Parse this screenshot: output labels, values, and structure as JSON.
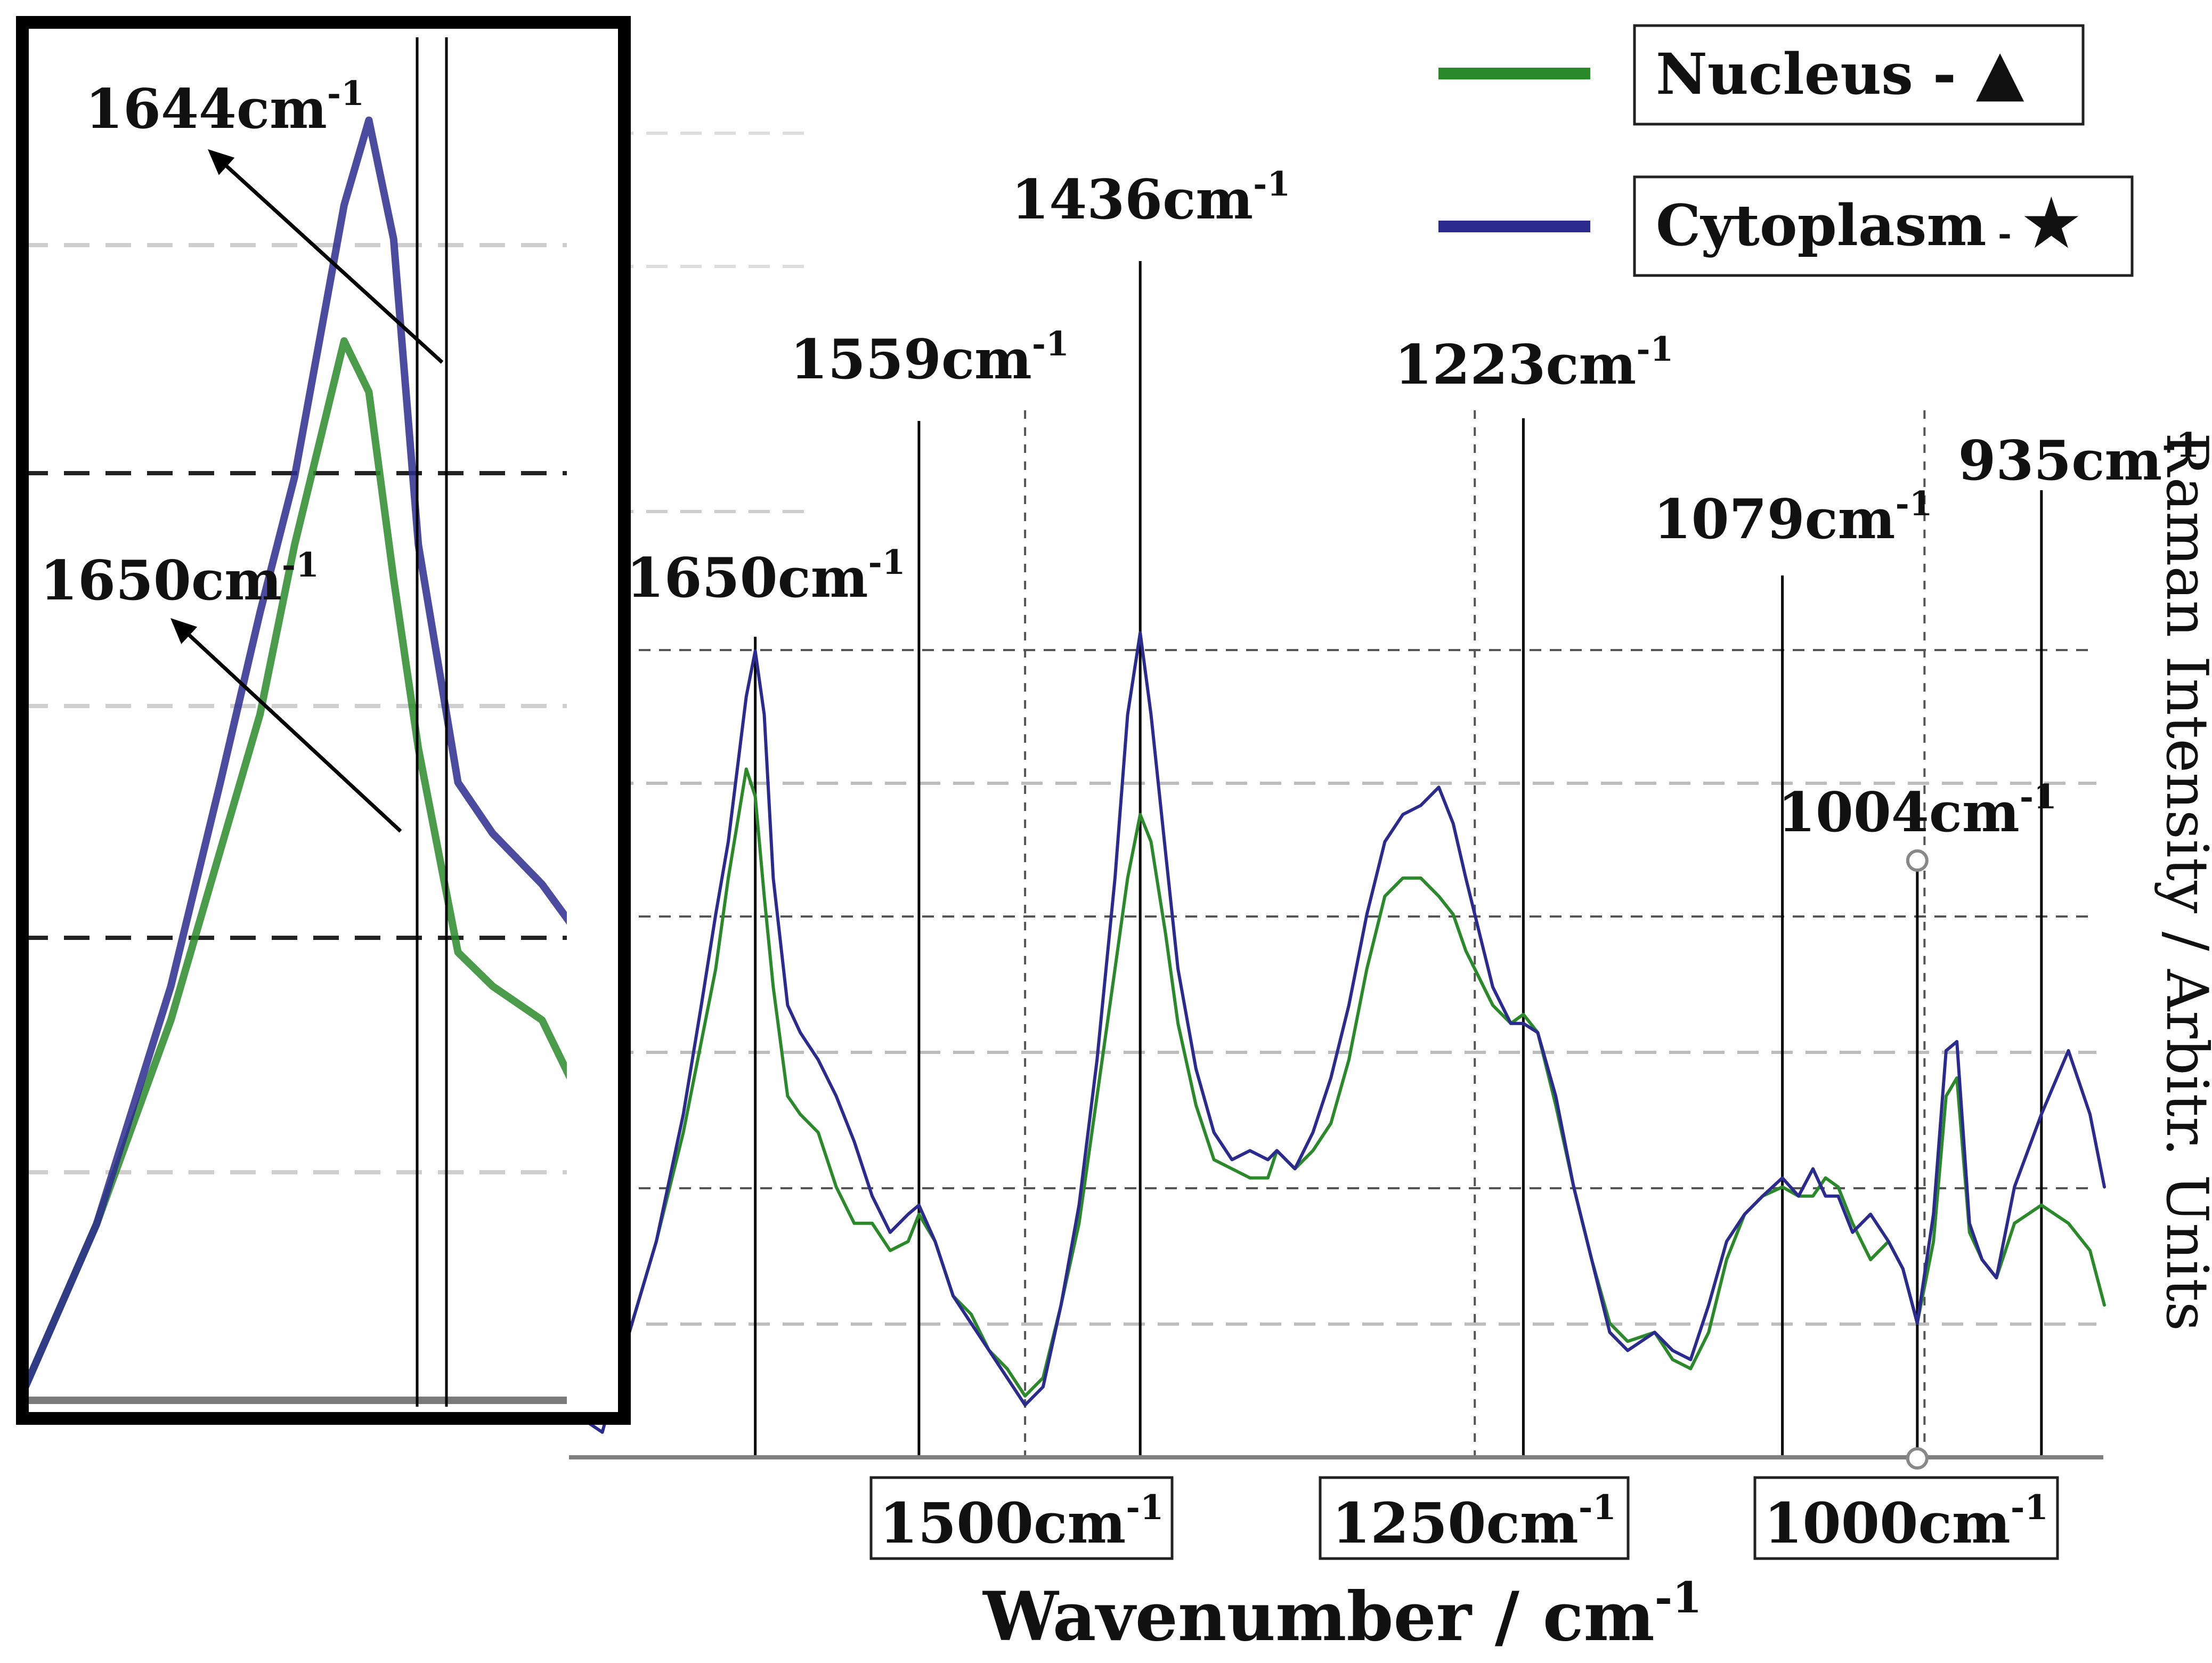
{
  "chart_data": {
    "type": "line",
    "title": "",
    "xlabel": "Wavenumber / cm",
    "xlabel_sup": "-1",
    "ylabel": "Raman Intensity / Arbitr. Units",
    "x_reversed": true,
    "xlim": [
      1750,
      900
    ],
    "ylim": [
      0,
      100
    ],
    "grid": true,
    "legend_position": "top-right",
    "x_ticks": [
      {
        "value": 1500,
        "label": "1500cm",
        "sup": "-1"
      },
      {
        "value": 1250,
        "label": "1250cm",
        "sup": "-1"
      },
      {
        "value": 1000,
        "label": "1000cm",
        "sup": "-1"
      }
    ],
    "legend": [
      {
        "series": "nucleus",
        "label": "Nucleus - ",
        "marker": "▲"
      },
      {
        "series": "cytoplasm",
        "label": "Cytoplasm",
        "separator": " - ",
        "marker": "★"
      }
    ],
    "series": [
      {
        "id": "nucleus",
        "name": "Nucleus",
        "color": "#2a8a2a",
        "x": [
          1750,
          1735,
          1720,
          1705,
          1690,
          1680,
          1672,
          1665,
          1660,
          1655,
          1650,
          1645,
          1640,
          1632,
          1625,
          1615,
          1605,
          1595,
          1585,
          1575,
          1565,
          1559,
          1550,
          1540,
          1530,
          1520,
          1510,
          1500,
          1490,
          1480,
          1470,
          1460,
          1450,
          1443,
          1436,
          1430,
          1422,
          1415,
          1405,
          1395,
          1385,
          1375,
          1365,
          1360,
          1350,
          1340,
          1330,
          1320,
          1310,
          1300,
          1290,
          1280,
          1270,
          1262,
          1255,
          1245,
          1240,
          1230,
          1223,
          1215,
          1205,
          1195,
          1185,
          1175,
          1165,
          1150,
          1140,
          1130,
          1120,
          1110,
          1100,
          1090,
          1079,
          1070,
          1062,
          1055,
          1048,
          1040,
          1030,
          1020,
          1012,
          1004,
          995,
          988,
          982,
          975,
          968,
          960,
          950,
          935,
          920,
          908,
          900
        ],
        "y": [
          4,
          3,
          12,
          22,
          34,
          44,
          52,
          62,
          68,
          74,
          71,
          60,
          50,
          38,
          36,
          34,
          28,
          24,
          24,
          21,
          22,
          25,
          22,
          16,
          14,
          10,
          8,
          5,
          7,
          15,
          24,
          38,
          52,
          62,
          69,
          66,
          56,
          46,
          37,
          31,
          30,
          29,
          29,
          32,
          30,
          32,
          35,
          42,
          52,
          60,
          62,
          62,
          60,
          58,
          54,
          50,
          48,
          46,
          47,
          45,
          37,
          28,
          20,
          13,
          11,
          12,
          9,
          8,
          12,
          20,
          25,
          27,
          28,
          27,
          27,
          29,
          28,
          24,
          20,
          22,
          19,
          13,
          22,
          38,
          40,
          23,
          20,
          18,
          24,
          26,
          24,
          21,
          15
        ]
      },
      {
        "id": "cytoplasm",
        "name": "Cytoplasm",
        "color": "#2b2b8f",
        "x": [
          1750,
          1735,
          1720,
          1705,
          1690,
          1680,
          1672,
          1665,
          1660,
          1655,
          1650,
          1645,
          1640,
          1632,
          1625,
          1615,
          1605,
          1595,
          1585,
          1575,
          1565,
          1559,
          1550,
          1540,
          1530,
          1520,
          1510,
          1500,
          1490,
          1480,
          1470,
          1460,
          1450,
          1443,
          1436,
          1430,
          1422,
          1415,
          1405,
          1395,
          1385,
          1375,
          1365,
          1360,
          1350,
          1340,
          1330,
          1320,
          1310,
          1300,
          1290,
          1280,
          1270,
          1262,
          1255,
          1245,
          1240,
          1230,
          1223,
          1215,
          1205,
          1195,
          1185,
          1175,
          1165,
          1150,
          1140,
          1130,
          1120,
          1110,
          1100,
          1090,
          1079,
          1070,
          1062,
          1055,
          1048,
          1040,
          1030,
          1020,
          1012,
          1004,
          995,
          988,
          982,
          975,
          968,
          960,
          950,
          935,
          920,
          908,
          900
        ],
        "y": [
          3,
          1,
          12,
          22,
          36,
          48,
          58,
          66,
          74,
          82,
          87,
          80,
          62,
          48,
          45,
          42,
          38,
          33,
          27,
          23,
          25,
          26,
          22,
          16,
          13,
          10,
          7,
          4,
          6,
          15,
          26,
          42,
          62,
          80,
          89,
          80,
          65,
          52,
          41,
          34,
          31,
          32,
          31,
          32,
          30,
          34,
          40,
          48,
          58,
          66,
          69,
          70,
          72,
          68,
          62,
          54,
          50,
          46,
          46,
          45,
          38,
          28,
          20,
          12,
          10,
          12,
          10,
          9,
          15,
          22,
          25,
          27,
          29,
          27,
          30,
          27,
          27,
          23,
          25,
          22,
          19,
          13,
          25,
          43,
          44,
          24,
          20,
          18,
          28,
          36,
          43,
          36,
          28
        ]
      }
    ],
    "annotations": [
      {
        "label": "1650cm",
        "sup": "-1",
        "x": 1650
      },
      {
        "label": "1559cm",
        "sup": "-1",
        "x": 1559
      },
      {
        "label": "1436cm",
        "sup": "-1",
        "x": 1436
      },
      {
        "label": "1223cm",
        "sup": "-1",
        "x": 1223
      },
      {
        "label": "1079cm",
        "sup": "-1",
        "x": 1079
      },
      {
        "label": "1004cm",
        "sup": "-1",
        "x": 1004
      },
      {
        "label": "935cm",
        "sup": "-1",
        "x": 935
      }
    ],
    "inset": {
      "description_range_x": [
        1720,
        1610
      ],
      "annotations": [
        {
          "label": "1644cm",
          "sup": "-1",
          "x": 1644
        },
        {
          "label": "1650cm",
          "sup": "-1",
          "x": 1650
        }
      ]
    }
  }
}
